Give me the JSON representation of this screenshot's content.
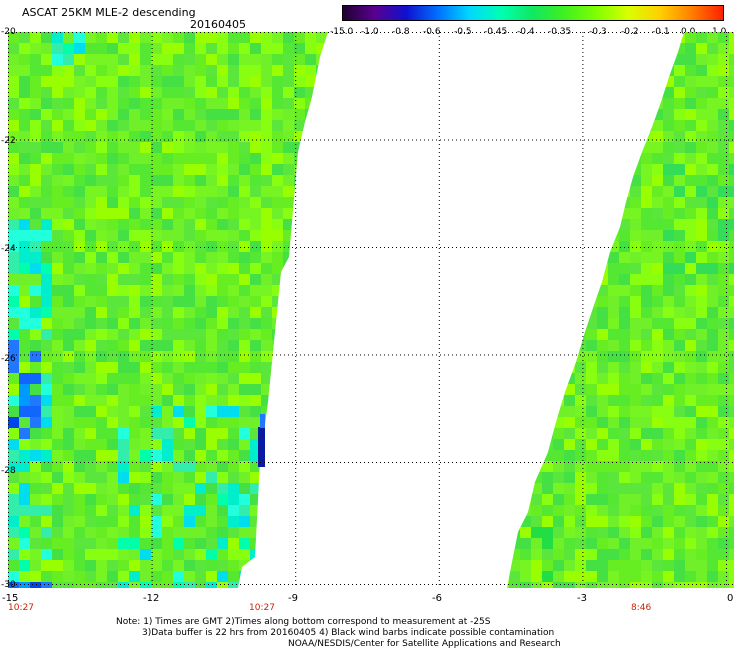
{
  "header": {
    "title": "ASCAT 25KM MLE-2 descending",
    "date": "20160405"
  },
  "colorbar": {
    "ticks": [
      "-15.0",
      "-1.0",
      "-0.8",
      "-0.6",
      "-0.5",
      "-0.45",
      "-0.4",
      "-0.35",
      "-0.3",
      "-0.2",
      "-0.1",
      "0.0",
      "1.0"
    ],
    "colors": [
      "#200030",
      "#5a0090",
      "#1010d0",
      "#0070ff",
      "#00d8ff",
      "#00ffb0",
      "#10e860",
      "#40f020",
      "#80ff00",
      "#d8ff00",
      "#ffd000",
      "#ff8000",
      "#ff2000"
    ]
  },
  "axes": {
    "lon_labels": [
      "-15",
      "-12",
      "-9",
      "-6",
      "-3",
      "0"
    ],
    "lat_labels": [
      "-20",
      "-22",
      "-24",
      "-26",
      "-28",
      "-30"
    ],
    "lon_range": [
      -15,
      0
    ],
    "lat_range": [
      -20,
      -30
    ]
  },
  "times": {
    "left": "10:27",
    "middle": "10:27",
    "right": "8:46"
  },
  "notes": {
    "line1": "Note: 1) Times are GMT 2)Times along bottom correspond to measurement at -25S",
    "line2": "3)Data buffer is 22 hrs from 20160405 4) Black wind barbs indicate possible contamination",
    "line3": "NOAA/NESDIS/Center for Satellite Applications and Research"
  },
  "legend_colors": {
    "white_gap": "#ffffff",
    "main_green": "#66ee22"
  }
}
